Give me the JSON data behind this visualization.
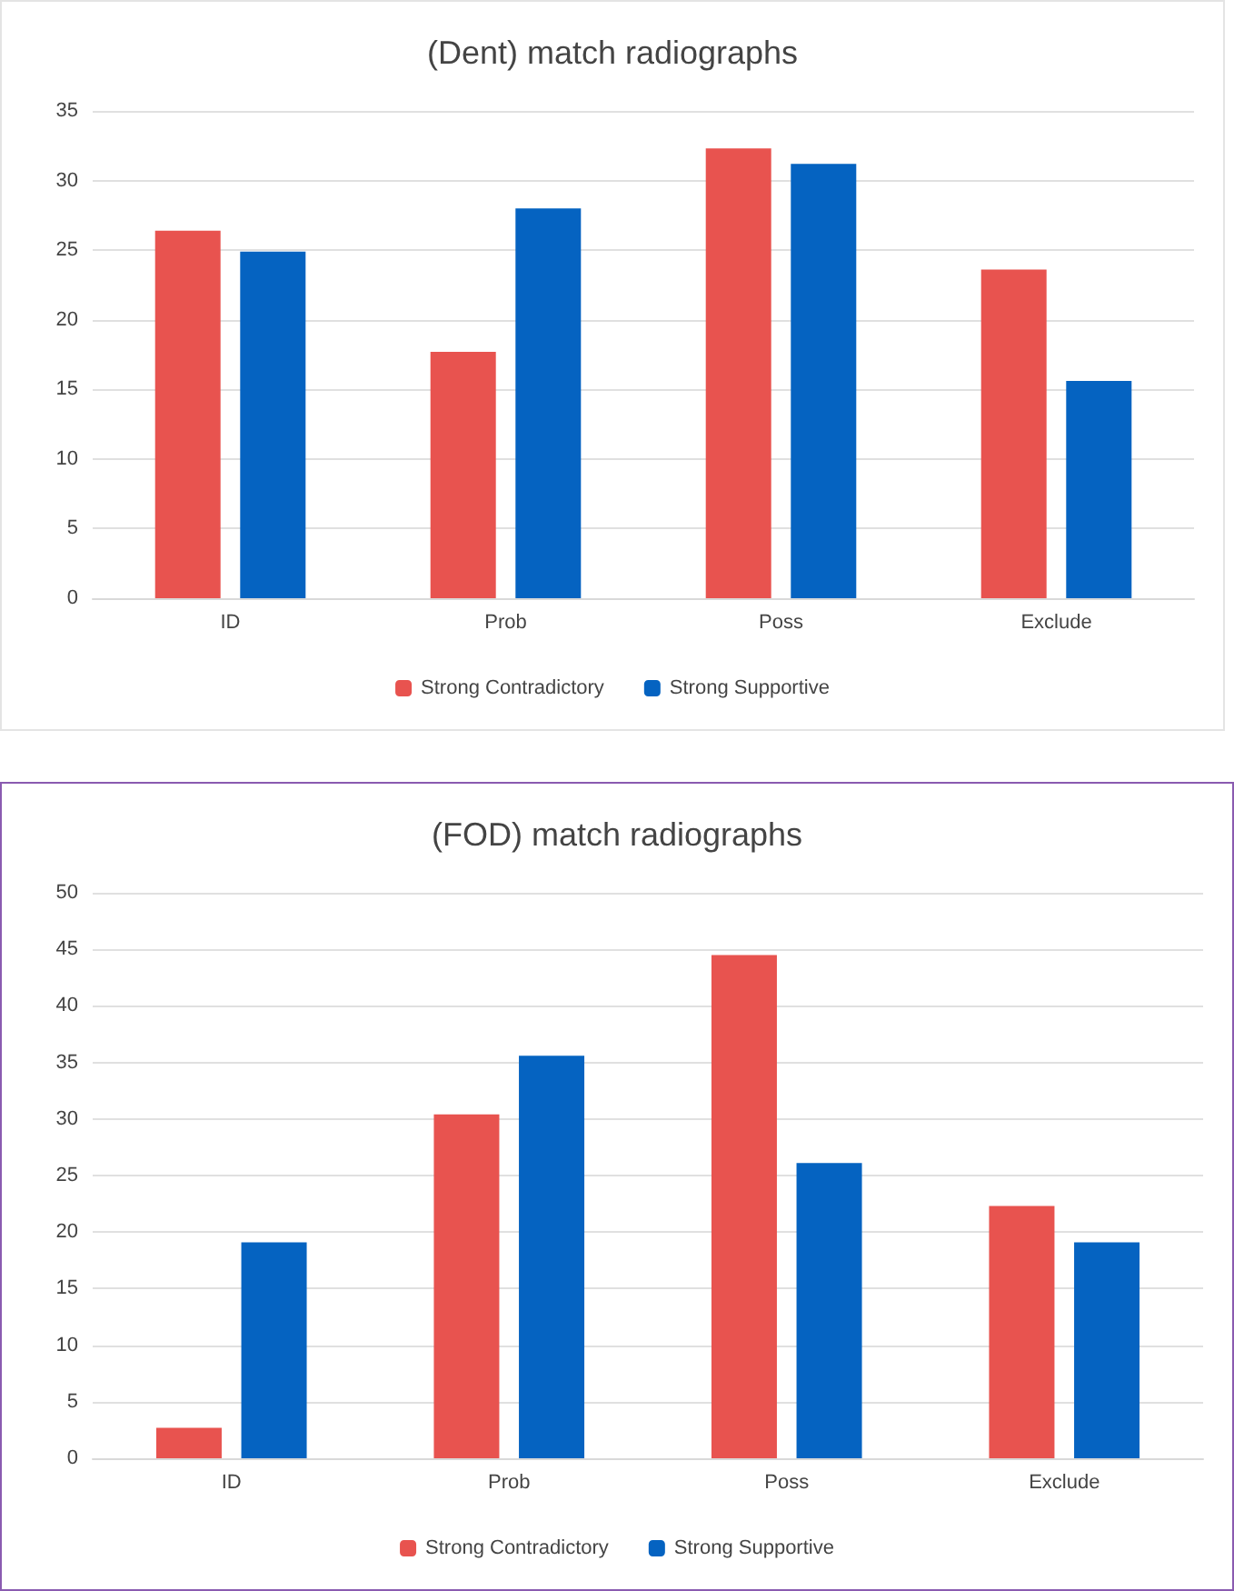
{
  "chart_data": [
    {
      "type": "bar",
      "title": "(Dent) match radiographs",
      "categories": [
        "ID",
        "Prob",
        "Poss",
        "Exclude"
      ],
      "series": [
        {
          "name": "Strong Contradictory",
          "color": "#e8534f",
          "values": [
            26.4,
            17.7,
            32.3,
            23.6
          ]
        },
        {
          "name": "Strong Supportive",
          "color": "#0563c1",
          "values": [
            24.9,
            28.0,
            31.2,
            15.6
          ]
        }
      ],
      "ylim": [
        0,
        35
      ],
      "yticks": [
        0,
        5,
        10,
        15,
        20,
        25,
        30,
        35
      ],
      "grid": "y",
      "legend": "bottom"
    },
    {
      "type": "bar",
      "title": "(FOD) match radiographs",
      "categories": [
        "ID",
        "Prob",
        "Poss",
        "Exclude"
      ],
      "series": [
        {
          "name": "Strong Contradictory",
          "color": "#e8534f",
          "values": [
            2.7,
            30.4,
            44.5,
            22.3
          ]
        },
        {
          "name": "Strong Supportive",
          "color": "#0563c1",
          "values": [
            19.1,
            35.6,
            26.1,
            19.1
          ]
        }
      ],
      "ylim": [
        0,
        50
      ],
      "yticks": [
        0,
        5,
        10,
        15,
        20,
        25,
        30,
        35,
        40,
        45,
        50
      ],
      "grid": "y",
      "legend": "bottom"
    }
  ]
}
